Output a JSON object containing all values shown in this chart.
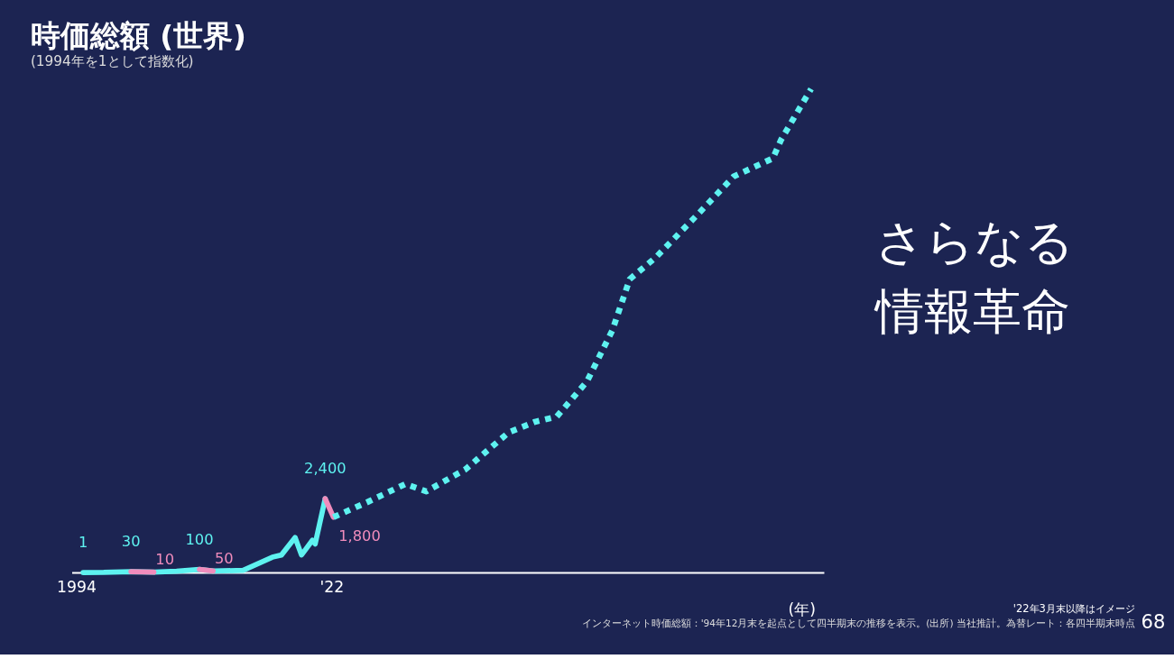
{
  "chart_data": {
    "type": "line",
    "title": "時価総額 (世界)",
    "subtitle": "(1994年を1として指数化)",
    "xlabel": "(年)",
    "xlim": [
      1993.5,
      2076
    ],
    "xticks": [
      1994,
      {
        "value": 2022,
        "label": "'22"
      }
    ],
    "tick_labels": "x",
    "grid": false,
    "marker": "none",
    "series": [
      {
        "color": "#5ef2f0",
        "line_style": "solid",
        "x": [
          1994.75,
          1997,
          2000,
          2002.5,
          2005,
          2007.5,
          2009,
          2012.3,
          2015.5,
          2016.5,
          2018,
          2018.7,
          2019.9,
          2020.2,
          2021.3
        ],
        "values": [
          1,
          5,
          30,
          10,
          40,
          100,
          50,
          70,
          500,
          570,
          1140,
          570,
          1050,
          930,
          2400
        ],
        "value_labels": [
          "1",
          null,
          "30",
          null,
          null,
          "100",
          null,
          null,
          null,
          null,
          null,
          null,
          null,
          null,
          "2,400"
        ]
      },
      {
        "color": "#f08cbc",
        "line_style": "solid",
        "x": [
          2000,
          2002.5
        ],
        "values": [
          30,
          10
        ],
        "value_labels": [
          null,
          "10"
        ]
      },
      {
        "color": "#f08cbc",
        "line_style": "solid",
        "x": [
          2007.5,
          2009
        ],
        "values": [
          100,
          50
        ],
        "value_labels": [
          null,
          "50"
        ]
      },
      {
        "color": "#f08cbc",
        "line_style": "solid",
        "x": [
          2021.3,
          2022.2
        ],
        "values": [
          2400,
          1800
        ],
        "value_labels": [
          null,
          "1,800"
        ]
      },
      {
        "color": "#5ef2f0",
        "line_style": "dotted",
        "x": [
          2022.2,
          2026,
          2030.1,
          2032.4,
          2036.7,
          2041.4,
          2044.3,
          2046.7,
          2050,
          2052.8,
          2054.7,
          2057.6,
          2062.3,
          2066.1,
          2070.4,
          2071.3,
          2072.7,
          2074.6
        ],
        "values": [
          1800,
          2300,
          2880,
          2640,
          3360,
          4550,
          4900,
          5070,
          6210,
          7880,
          9540,
          10260,
          11690,
          12880,
          13470,
          14070,
          14780,
          15730
        ]
      }
    ],
    "annotations": [
      "さらなる",
      "情報革命",
      "'22年3月末以降はイメージ",
      "インターネット時価総額：'94年12月末を起点として四半期末の推移を表示。(出所) 当社推計。為替レート：各四半期末時点",
      "68"
    ]
  }
}
